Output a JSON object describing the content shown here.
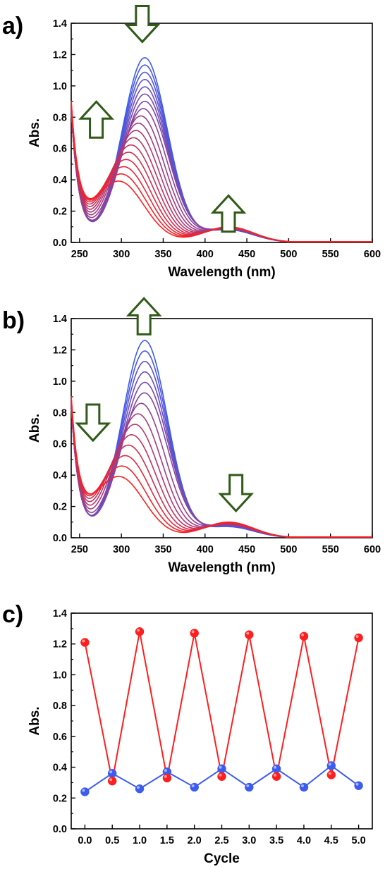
{
  "panels": {
    "a": {
      "label": "a)"
    },
    "b": {
      "label": "b)"
    },
    "c": {
      "label": "c)"
    }
  },
  "chart_data": [
    {
      "id": "a",
      "type": "line",
      "xlabel": "Wavelength (nm)",
      "ylabel": "Abs.",
      "xlim": [
        240,
        600
      ],
      "ylim": [
        0.0,
        1.4
      ],
      "xticks": [
        "250",
        "300",
        "350",
        "400",
        "450",
        "500",
        "550",
        "600"
      ],
      "yticks": [
        "0.0",
        "0.2",
        "0.4",
        "0.6",
        "0.8",
        "1.0",
        "1.2",
        "1.4"
      ],
      "series_count": 18,
      "color_first": "#3c5cf0",
      "color_last": "#ff1e1e",
      "band_peak_start": 1.21,
      "band_peak_end": 0.42,
      "visible_peak_start": 0.08,
      "visible_peak_end": 0.1,
      "arrows": [
        {
          "wavelength": 270,
          "abs": 0.8,
          "direction": "up"
        },
        {
          "wavelength": 325,
          "abs": 1.38,
          "direction": "down"
        },
        {
          "wavelength": 428,
          "abs": 0.2,
          "direction": "up"
        }
      ]
    },
    {
      "id": "b",
      "type": "line",
      "xlabel": "Wavelength (nm)",
      "ylabel": "Abs.",
      "xlim": [
        240,
        600
      ],
      "ylim": [
        0.0,
        1.4
      ],
      "xticks": [
        "250",
        "300",
        "350",
        "400",
        "450",
        "500",
        "550",
        "600"
      ],
      "yticks": [
        "0.0",
        "0.2",
        "0.4",
        "0.6",
        "0.8",
        "1.0",
        "1.2",
        "1.4"
      ],
      "series_count": 14,
      "color_first": "#ff1e1e",
      "color_last": "#3c5cf0",
      "band_peak_start": 0.42,
      "band_peak_end": 1.29,
      "visible_peak_start": 0.1,
      "visible_peak_end": 0.07,
      "arrows": [
        {
          "wavelength": 266,
          "abs": 0.72,
          "direction": "down"
        },
        {
          "wavelength": 327,
          "abs": 1.43,
          "direction": "up"
        },
        {
          "wavelength": 437,
          "abs": 0.27,
          "direction": "down"
        }
      ]
    },
    {
      "id": "c",
      "type": "line",
      "xlabel": "Cycle",
      "ylabel": "Abs.",
      "xlim": [
        -0.25,
        5.25
      ],
      "ylim": [
        0.0,
        1.4
      ],
      "xticks": [
        "0.0",
        "0.5",
        "1.0",
        "1.5",
        "2.0",
        "2.5",
        "3.0",
        "3.5",
        "4.0",
        "4.5",
        "5.0"
      ],
      "yticks": [
        "0.0",
        "0.2",
        "0.4",
        "0.6",
        "0.8",
        "1.0",
        "1.2",
        "1.4"
      ],
      "series": [
        {
          "color": "#ff1e1e",
          "x": [
            0.0,
            0.5,
            1.0,
            1.5,
            2.0,
            2.5,
            3.0,
            3.5,
            4.0,
            4.5,
            5.0
          ],
          "values": [
            1.21,
            0.31,
            1.28,
            0.33,
            1.27,
            0.34,
            1.26,
            0.34,
            1.25,
            0.35,
            1.24
          ]
        },
        {
          "color": "#3c5cf0",
          "x": [
            0.0,
            0.5,
            1.0,
            1.5,
            2.0,
            2.5,
            3.0,
            3.5,
            4.0,
            4.5,
            5.0
          ],
          "values": [
            0.24,
            0.36,
            0.26,
            0.37,
            0.27,
            0.39,
            0.27,
            0.39,
            0.27,
            0.41,
            0.28
          ]
        }
      ]
    }
  ]
}
